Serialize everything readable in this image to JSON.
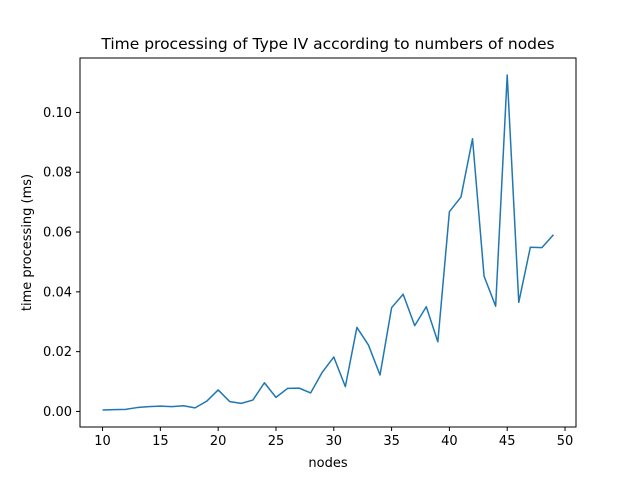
{
  "chart_data": {
    "type": "line",
    "title": "Time processing of Type IV according to numbers of nodes",
    "xlabel": "nodes",
    "ylabel": "time processing (ms)",
    "xlim": [
      8.05,
      50.95
    ],
    "ylim": [
      -0.0052,
      0.1182
    ],
    "xticks": [
      10,
      15,
      20,
      25,
      30,
      35,
      40,
      45,
      50
    ],
    "xtick_labels": [
      "10",
      "15",
      "20",
      "25",
      "30",
      "35",
      "40",
      "45",
      "50"
    ],
    "yticks": [
      0.0,
      0.02,
      0.04,
      0.06,
      0.08,
      0.1
    ],
    "ytick_labels": [
      "0.00",
      "0.02",
      "0.04",
      "0.06",
      "0.08",
      "0.10"
    ],
    "grid": false,
    "series": [
      {
        "color": "#1f77b4",
        "x": [
          10,
          11,
          12,
          13,
          14,
          15,
          16,
          17,
          18,
          19,
          20,
          21,
          22,
          23,
          24,
          25,
          26,
          27,
          28,
          29,
          30,
          31,
          32,
          33,
          34,
          35,
          36,
          37,
          38,
          39,
          40,
          41,
          42,
          43,
          44,
          45,
          46,
          47,
          48,
          49
        ],
        "y": [
          0.0005,
          0.0006,
          0.0007,
          0.0013,
          0.0016,
          0.0018,
          0.0016,
          0.0019,
          0.0012,
          0.0034,
          0.0072,
          0.0033,
          0.0027,
          0.0038,
          0.0096,
          0.0047,
          0.0077,
          0.0078,
          0.0062,
          0.0131,
          0.0182,
          0.0083,
          0.0281,
          0.0222,
          0.0122,
          0.0347,
          0.0392,
          0.0287,
          0.035,
          0.0233,
          0.0668,
          0.0717,
          0.0912,
          0.0452,
          0.0352,
          0.1125,
          0.0365,
          0.0549,
          0.0548,
          0.0591
        ]
      }
    ]
  }
}
